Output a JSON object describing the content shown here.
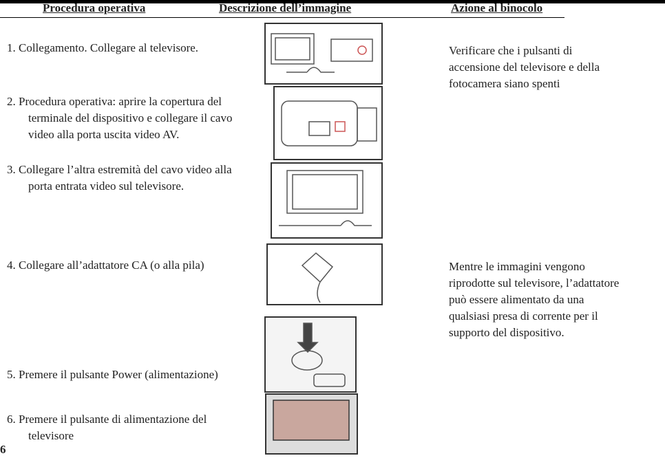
{
  "header": {
    "columns": [
      "Procedura operativa",
      "Descrizione dell’immagine",
      "Azione al binocolo"
    ]
  },
  "rows": [
    {
      "procedure": [
        "1.  Collegamento. Collegare al televisore."
      ],
      "action": [
        "Verificare che i pulsanti di",
        "accensione del televisore e della",
        "fotocamera siano spenti"
      ]
    },
    {
      "procedure": [
        "2. Procedura operativa: aprire la copertura del",
        "terminale del dispositivo e collegare il cavo",
        "video alla porta uscita video AV."
      ]
    },
    {
      "procedure": [
        "3. Collegare l’altra estremità del cavo video alla",
        "porta entrata video sul televisore."
      ]
    },
    {
      "procedure": [
        "4.  Collegare all’adattatore CA (o alla pila)"
      ],
      "action": [
        "Mentre le immagini vengono",
        "riprodotte sul televisore, l’adattatore",
        "può essere alimentato da una",
        "qualsiasi presa di corrente per il",
        "supporto del dispositivo."
      ]
    },
    {
      "procedure": [
        "5. Premere il pulsante Power (alimentazione)"
      ]
    },
    {
      "procedure": [
        "6. Premere il pulsante di alimentazione del",
        "televisore"
      ]
    }
  ],
  "page_number": "6"
}
